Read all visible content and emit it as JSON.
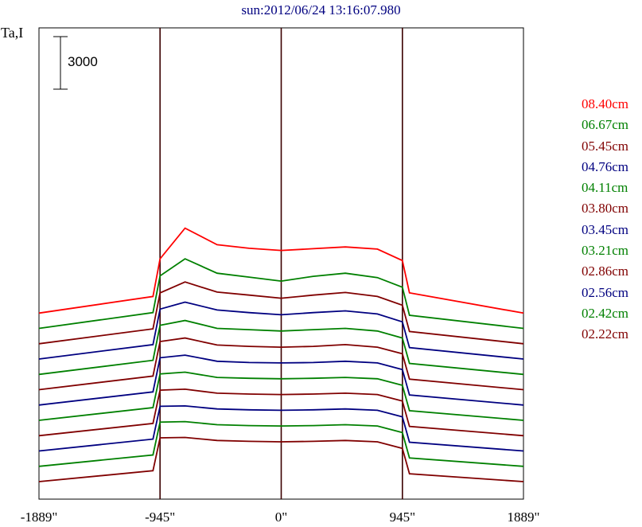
{
  "chart_data": {
    "type": "line",
    "title": "sun:2012/06/24 13:16:07.980",
    "ylabel": "Ta,I",
    "scale_bar_label": "3000",
    "scale_bar_value": 3000,
    "xlabel": "",
    "x_ticks": [
      {
        "value": -1889,
        "label": "-1889\""
      },
      {
        "value": -945,
        "label": "-945\""
      },
      {
        "value": 0,
        "label": "0\""
      },
      {
        "value": 945,
        "label": "945\""
      },
      {
        "value": 1889,
        "label": "1889\""
      }
    ],
    "xlim": [
      -1889,
      1889
    ],
    "vertical_markers": [
      -945,
      0,
      945
    ],
    "grid": false,
    "legend_position": "right",
    "stacked_offset_per_series": 1750,
    "x": [
      -1889,
      -1000,
      -945,
      -750,
      -500,
      -250,
      0,
      250,
      500,
      750,
      945,
      1000,
      1889
    ],
    "series": [
      {
        "name": "08.40cm",
        "color": "#ff0000",
        "values": [
          0,
          1900,
          6200,
          9700,
          7800,
          7400,
          7150,
          7350,
          7550,
          7300,
          6000,
          2300,
          0
        ]
      },
      {
        "name": "06.67cm",
        "color": "#008000",
        "values": [
          0,
          1800,
          6000,
          7950,
          6300,
          5850,
          5400,
          5950,
          6300,
          5800,
          4700,
          1500,
          0
        ]
      },
      {
        "name": "05.45cm",
        "color": "#800000",
        "values": [
          0,
          1700,
          5800,
          7050,
          5900,
          5550,
          5200,
          5550,
          5850,
          5400,
          4400,
          1400,
          0
        ]
      },
      {
        "name": "04.76cm",
        "color": "#000080",
        "values": [
          0,
          1650,
          5700,
          6500,
          5600,
          5300,
          5050,
          5300,
          5500,
          5150,
          4250,
          1300,
          0
        ]
      },
      {
        "name": "04.11cm",
        "color": "#008000",
        "values": [
          0,
          1600,
          5600,
          6150,
          5250,
          5100,
          4950,
          5100,
          5250,
          4950,
          4150,
          1250,
          0
        ]
      },
      {
        "name": "03.80cm",
        "color": "#800000",
        "values": [
          0,
          1550,
          5500,
          5900,
          5100,
          4950,
          4850,
          4950,
          5150,
          4850,
          4100,
          1200,
          0
        ]
      },
      {
        "name": "03.45cm",
        "color": "#000080",
        "values": [
          0,
          1500,
          5400,
          5700,
          5000,
          4850,
          4800,
          4850,
          5000,
          4800,
          4050,
          1150,
          0
        ]
      },
      {
        "name": "03.21cm",
        "color": "#008000",
        "values": [
          0,
          1450,
          5300,
          5500,
          4900,
          4800,
          4750,
          4800,
          4900,
          4750,
          4000,
          1100,
          0
        ]
      },
      {
        "name": "02.86cm",
        "color": "#800000",
        "values": [
          0,
          1400,
          5200,
          5300,
          4850,
          4750,
          4700,
          4750,
          4850,
          4700,
          3950,
          1050,
          0
        ]
      },
      {
        "name": "02.56cm",
        "color": "#000080",
        "values": [
          0,
          1350,
          5100,
          5150,
          4800,
          4700,
          4650,
          4700,
          4800,
          4650,
          3900,
          1000,
          0
        ]
      },
      {
        "name": "02.42cm",
        "color": "#008000",
        "values": [
          0,
          1300,
          5050,
          5100,
          4750,
          4650,
          4600,
          4650,
          4750,
          4600,
          3850,
          950,
          0
        ]
      },
      {
        "name": "02.22cm",
        "color": "#800000",
        "values": [
          0,
          1250,
          5000,
          5050,
          4700,
          4600,
          4550,
          4600,
          4700,
          4550,
          3800,
          900,
          0
        ]
      }
    ]
  }
}
